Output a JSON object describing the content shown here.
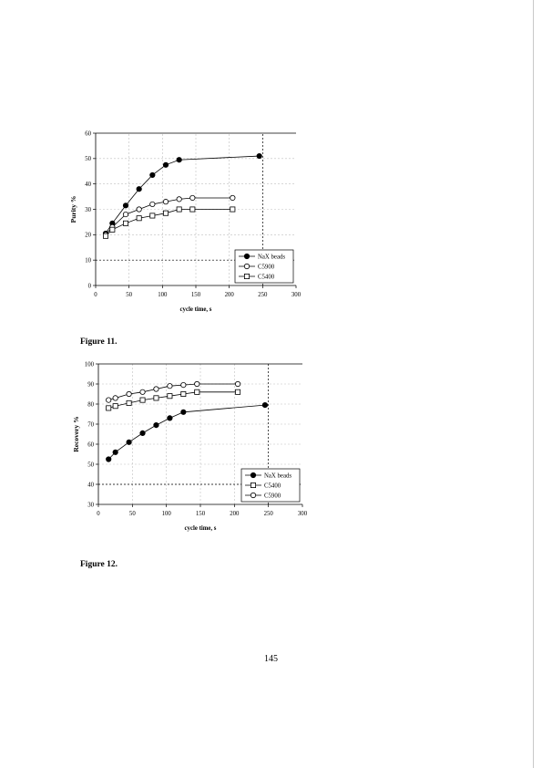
{
  "figures": [
    {
      "caption": "Figure 11.",
      "chart": {
        "type": "line",
        "ylabel": "Purity %",
        "xlabel": "cycle time, s",
        "xlim": [
          0,
          300
        ],
        "ylim": [
          0,
          60
        ],
        "x_ticks": [
          0,
          50,
          100,
          150,
          200,
          250,
          300
        ],
        "y_ticks": [
          0,
          10,
          20,
          30,
          40,
          50,
          60
        ],
        "grid": "dashed",
        "legend_position": "bottom-right",
        "reference_lines": {
          "x": 250,
          "y": 10
        },
        "series": [
          {
            "name": "NaX beads",
            "marker": "filled-circle",
            "x": [
              15,
              25,
              45,
              65,
              85,
              105,
              125,
              245
            ],
            "y": [
              20.5,
              24.5,
              31.5,
              38,
              43.5,
              47.5,
              49.5,
              51
            ]
          },
          {
            "name": "C5900",
            "marker": "open-circle",
            "x": [
              15,
              25,
              45,
              65,
              85,
              105,
              125,
              145,
              205
            ],
            "y": [
              20,
              23,
              28,
              30,
              32,
              33,
              34,
              34.5,
              34.5
            ]
          },
          {
            "name": "C5400",
            "marker": "open-square",
            "x": [
              15,
              25,
              45,
              65,
              85,
              105,
              125,
              145,
              205
            ],
            "y": [
              19.5,
              22,
              24.5,
              26.5,
              27.5,
              28.5,
              30,
              30,
              30
            ]
          }
        ]
      }
    },
    {
      "caption": "Figure 12.",
      "chart": {
        "type": "line",
        "ylabel": "Recovery %",
        "xlabel": "cycle time, s",
        "xlim": [
          0,
          300
        ],
        "ylim": [
          30,
          100
        ],
        "x_ticks": [
          0,
          50,
          100,
          150,
          200,
          250,
          300
        ],
        "y_ticks": [
          30,
          40,
          50,
          60,
          70,
          80,
          90,
          100
        ],
        "grid": "dashed",
        "legend_position": "bottom-right",
        "reference_lines": {
          "x": 250,
          "y": 40
        },
        "series": [
          {
            "name": "NaX beads",
            "marker": "filled-circle",
            "x": [
              15,
              25,
              45,
              65,
              85,
              105,
              125,
              245
            ],
            "y": [
              52.5,
              56,
              61,
              65.5,
              69.5,
              73,
              76,
              79.5
            ]
          },
          {
            "name": "C5400",
            "marker": "open-square",
            "x": [
              15,
              25,
              45,
              65,
              85,
              105,
              125,
              145,
              205
            ],
            "y": [
              78,
              79,
              80.5,
              82,
              83,
              84,
              85,
              86,
              86
            ]
          },
          {
            "name": "C5900",
            "marker": "open-circle",
            "x": [
              15,
              25,
              45,
              65,
              85,
              105,
              125,
              145,
              205
            ],
            "y": [
              82,
              83,
              85,
              86,
              87.5,
              89,
              89.5,
              90,
              90
            ]
          }
        ]
      }
    }
  ],
  "page_number": "145"
}
